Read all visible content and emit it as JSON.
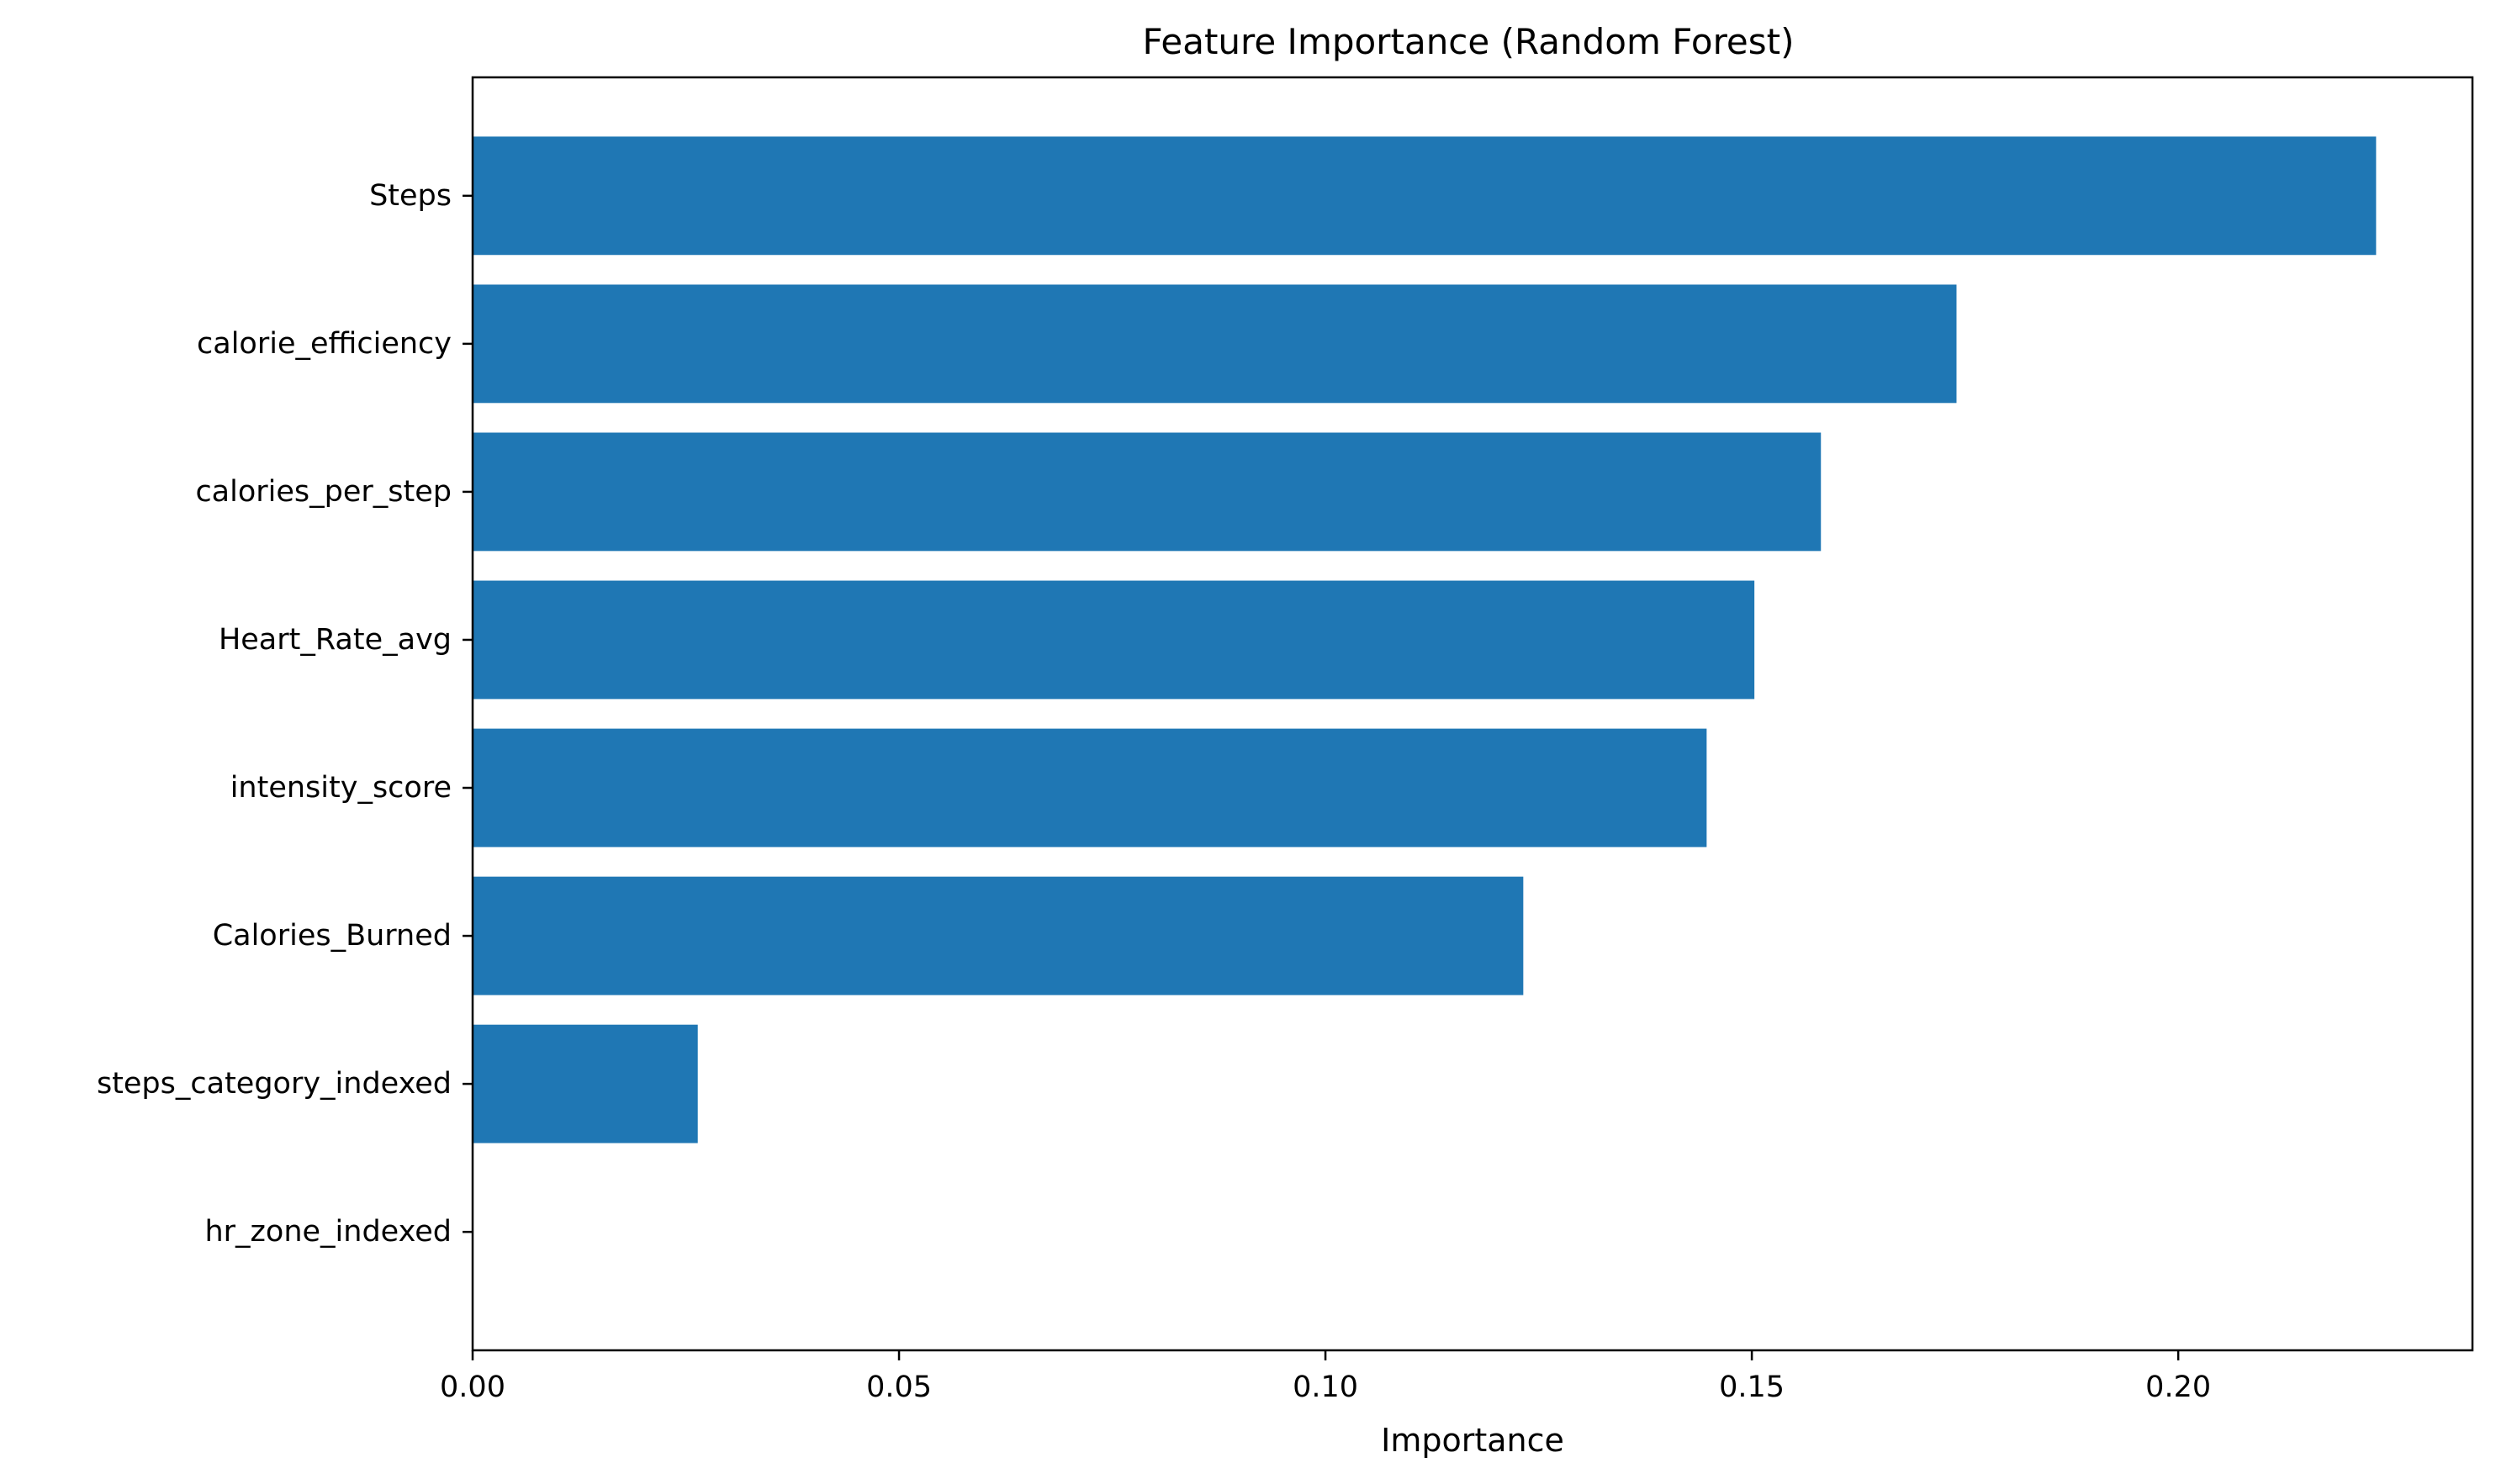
{
  "chart_data": {
    "type": "bar",
    "orientation": "horizontal",
    "title": "Feature Importance (Random Forest)",
    "xlabel": "Importance",
    "ylabel": "",
    "categories": [
      "Steps",
      "calorie_efficiency",
      "calories_per_step",
      "Heart_Rate_avg",
      "intensity_score",
      "Calories_Burned",
      "steps_category_indexed",
      "hr_zone_indexed"
    ],
    "values": [
      0.2232,
      0.174,
      0.1581,
      0.1503,
      0.1447,
      0.1232,
      0.0264,
      0.0
    ],
    "xlim": [
      0,
      0.2345
    ],
    "xticks": [
      0.0,
      0.05,
      0.1,
      0.15,
      0.2
    ],
    "xtick_labels": [
      "0.00",
      "0.05",
      "0.10",
      "0.15",
      "0.20"
    ],
    "bar_color": "#1f77b4",
    "grid": false,
    "legend": "none"
  }
}
